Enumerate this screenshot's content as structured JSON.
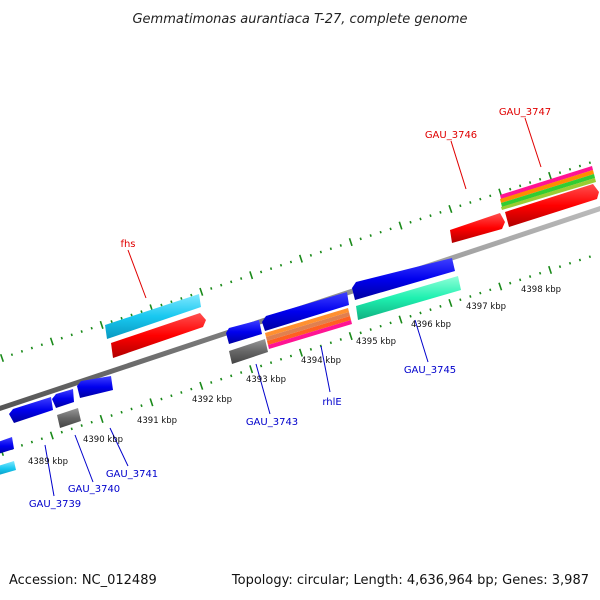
{
  "title": "Gemmatimonas aurantiaca T-27, complete genome",
  "footer": {
    "accession": "Accession: NC_012489",
    "summary": "Topology: circular; Length: 4,636,964 bp; Genes: 3,987"
  },
  "scale_labels": [
    "4389 kbp",
    "4390 kbp",
    "4391 kbp",
    "4392 kbp",
    "4393 kbp",
    "4394 kbp",
    "4395 kbp",
    "4396 kbp",
    "4397 kbp",
    "4398 kbp"
  ],
  "gene_labels_forward": [
    "fhs",
    "GAU_3746",
    "GAU_3747"
  ],
  "gene_labels_reverse": [
    "GAU_3739",
    "GAU_3740",
    "GAU_3741",
    "GAU_3743",
    "rhlE",
    "GAU_3745"
  ],
  "colors": {
    "forward_label": "#e00000",
    "reverse_label": "#0000cc",
    "cds_forward": "#ff1010",
    "cds_reverse": "#0000e6",
    "cds_grey": "#666666",
    "cds_cyan": "#1ac8f0",
    "cds_teal": "#1ef0b0",
    "backbone": "#888888",
    "tick": "#1a8a1a"
  }
}
